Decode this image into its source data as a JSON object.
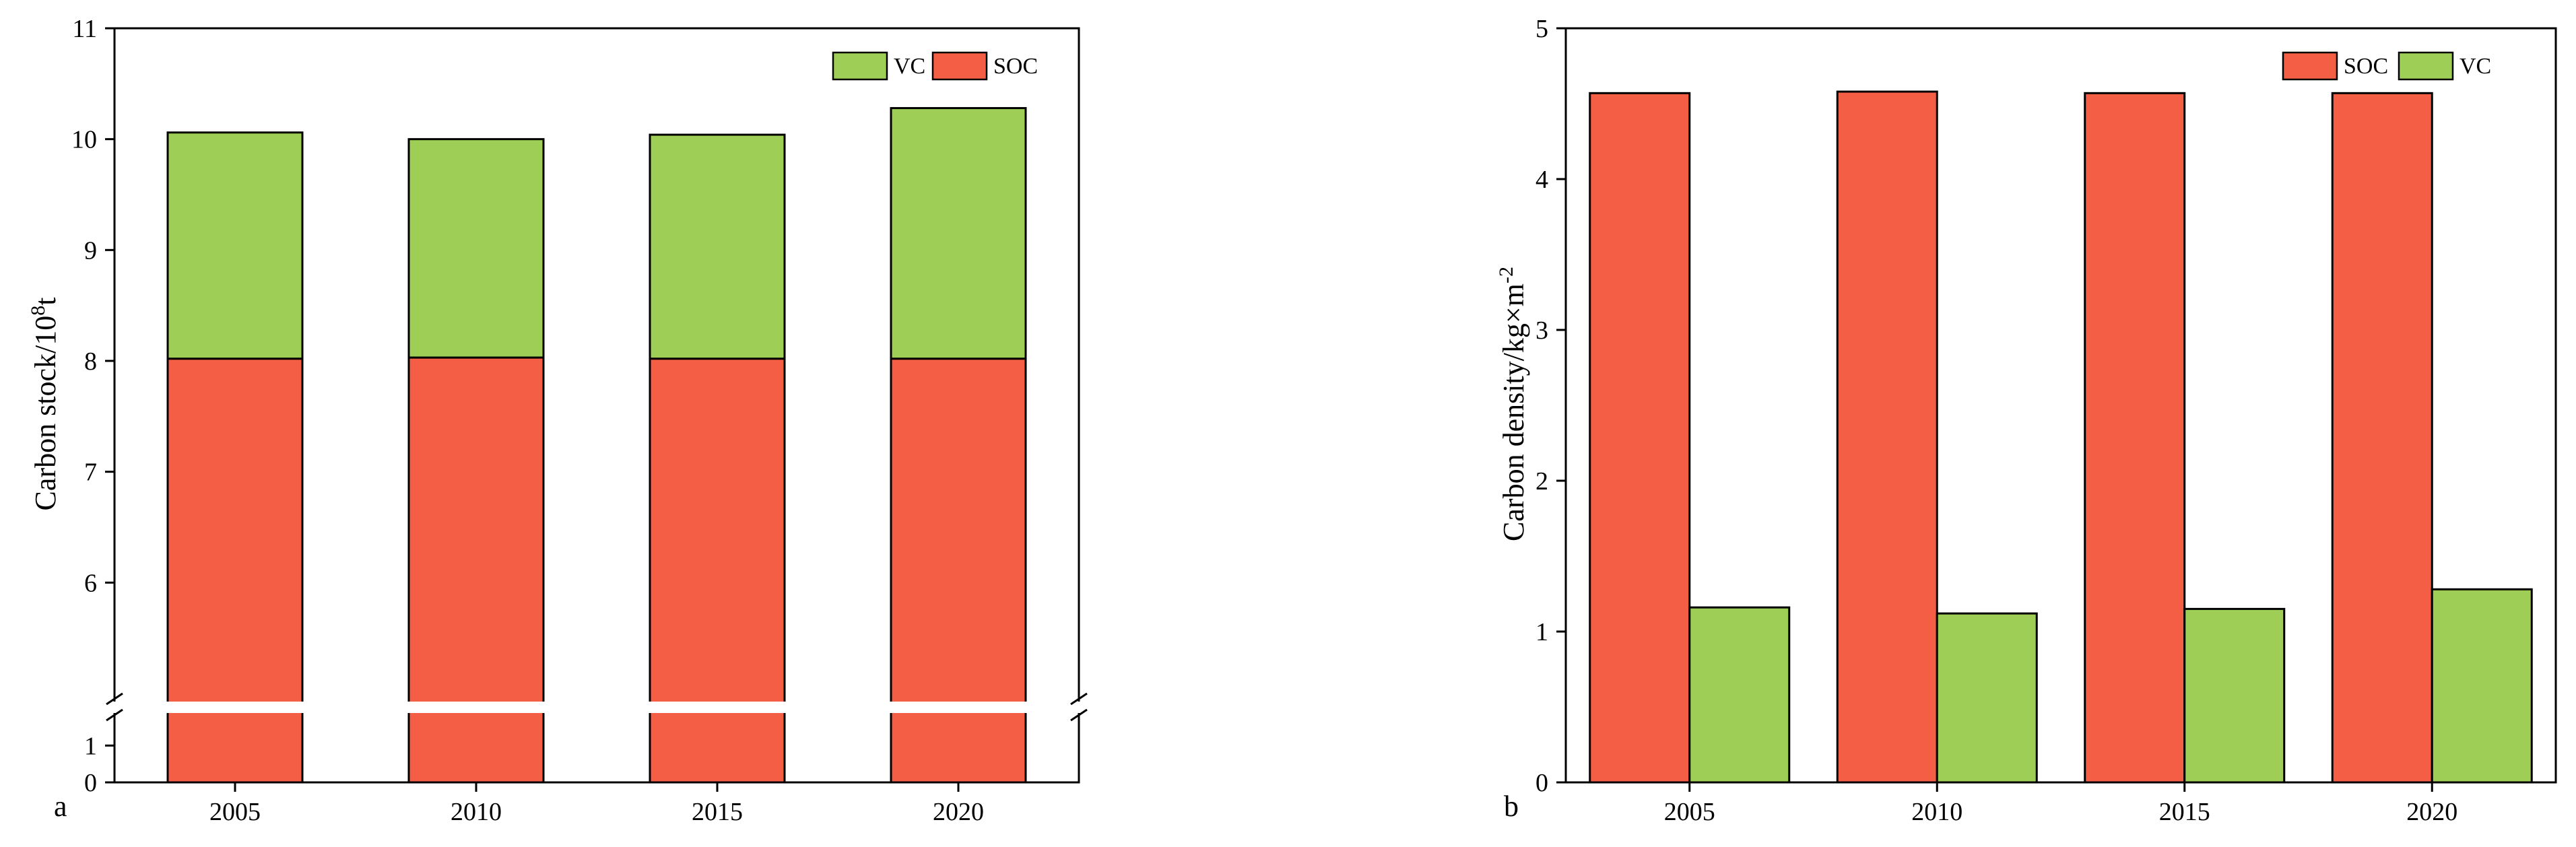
{
  "colors": {
    "soc": "#F45E45",
    "vc": "#9ECE55"
  },
  "chart_data": [
    {
      "type": "bar",
      "panel_label": "a",
      "stacked": true,
      "broken_axis": true,
      "categories": [
        "2005",
        "2010",
        "2015",
        "2020"
      ],
      "series": [
        {
          "name": "SOC",
          "values": [
            8.02,
            8.03,
            8.02,
            8.02
          ]
        },
        {
          "name": "VC",
          "values": [
            2.04,
            1.97,
            2.02,
            2.26
          ]
        }
      ],
      "ylabel_main": "Carbon stock/10",
      "ylabel_sup": "8",
      "ylabel_tail": "t",
      "ylim": [
        0,
        11
      ],
      "break_range": [
        1.5,
        5
      ],
      "yticks": [
        "0",
        "1",
        "6",
        "7",
        "8",
        "9",
        "10",
        "11"
      ],
      "legend_order": [
        "VC",
        "SOC"
      ],
      "legend_position": "top-right"
    },
    {
      "type": "bar",
      "panel_label": "b",
      "grouped": true,
      "categories": [
        "2005",
        "2010",
        "2015",
        "2020"
      ],
      "series": [
        {
          "name": "SOC",
          "values": [
            4.57,
            4.58,
            4.57,
            4.57
          ]
        },
        {
          "name": "VC",
          "values": [
            1.16,
            1.12,
            1.15,
            1.28
          ]
        }
      ],
      "ylabel_main": "Carbon density/kg×m",
      "ylabel_sup": "-2",
      "ylim": [
        0,
        5
      ],
      "yticks": [
        "0",
        "1",
        "2",
        "3",
        "4",
        "5"
      ],
      "legend_order": [
        "SOC",
        "VC"
      ],
      "legend_position": "top-right"
    }
  ]
}
